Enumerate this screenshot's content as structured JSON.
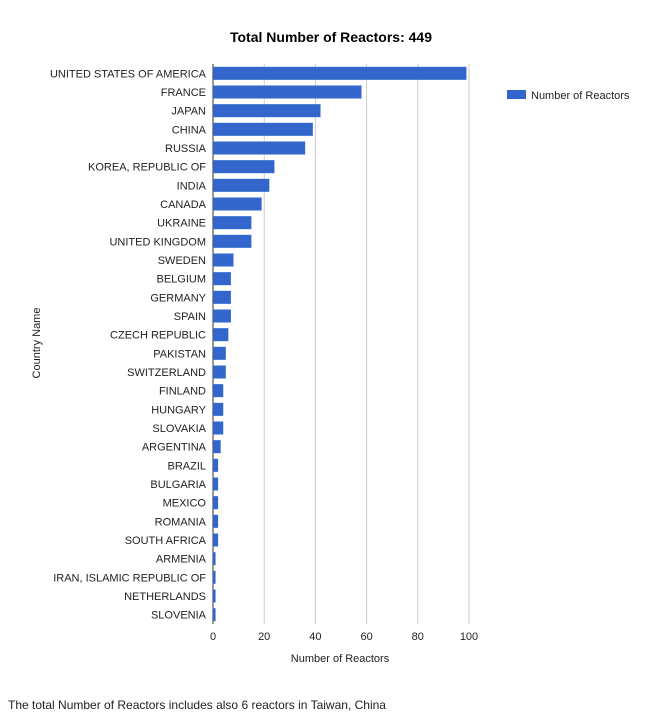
{
  "chart_data": {
    "type": "bar",
    "orientation": "horizontal",
    "title": "Total Number of Reactors: 449",
    "xlabel": "Number of Reactors",
    "ylabel": "Country Name",
    "xlim": [
      0,
      100
    ],
    "xticks": [
      0,
      20,
      40,
      60,
      80,
      100
    ],
    "grid": true,
    "legend_position": "top-right",
    "categories": [
      "UNITED STATES OF AMERICA",
      "FRANCE",
      "JAPAN",
      "CHINA",
      "RUSSIA",
      "KOREA, REPUBLIC OF",
      "INDIA",
      "CANADA",
      "UKRAINE",
      "UNITED KINGDOM",
      "SWEDEN",
      "BELGIUM",
      "GERMANY",
      "SPAIN",
      "CZECH REPUBLIC",
      "PAKISTAN",
      "SWITZERLAND",
      "FINLAND",
      "HUNGARY",
      "SLOVAKIA",
      "ARGENTINA",
      "BRAZIL",
      "BULGARIA",
      "MEXICO",
      "ROMANIA",
      "SOUTH AFRICA",
      "ARMENIA",
      "IRAN, ISLAMIC REPUBLIC OF",
      "NETHERLANDS",
      "SLOVENIA"
    ],
    "series": [
      {
        "name": "Number of Reactors",
        "color": "#3366cc",
        "values": [
          99,
          58,
          42,
          39,
          36,
          24,
          22,
          19,
          15,
          15,
          8,
          7,
          7,
          7,
          6,
          5,
          5,
          4,
          4,
          4,
          3,
          2,
          2,
          2,
          2,
          2,
          1,
          1,
          1,
          1
        ]
      }
    ]
  },
  "footnote": "The total Number of Reactors includes also 6 reactors in Taiwan, China"
}
